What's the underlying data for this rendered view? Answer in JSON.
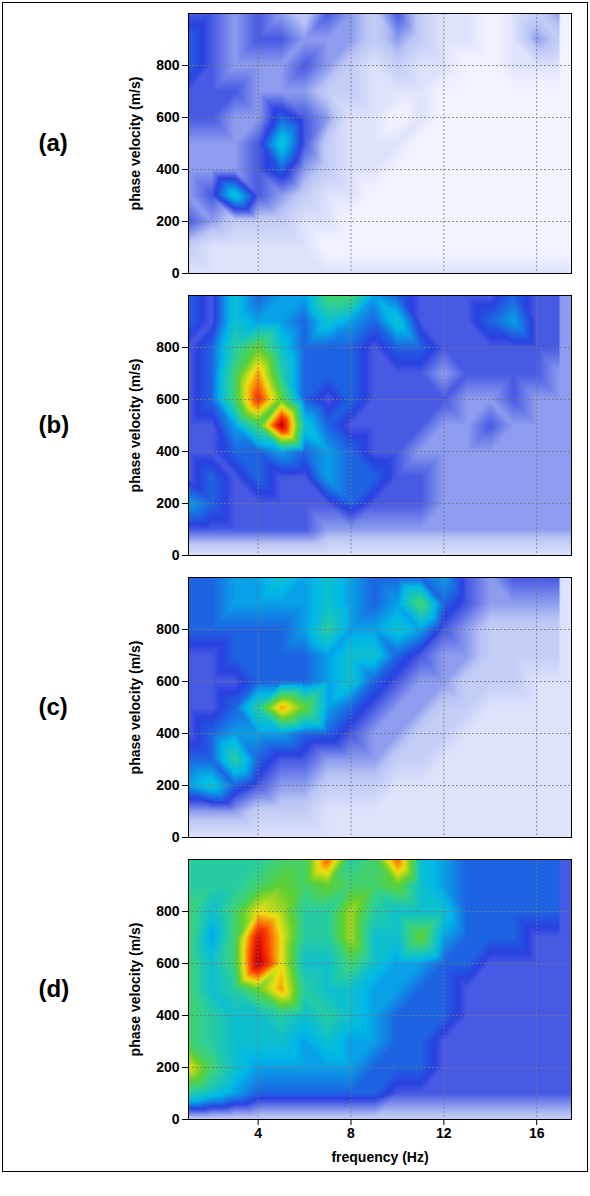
{
  "chart_data": [
    {
      "type": "heatmap",
      "title": "(a)",
      "y_label": "phase velocity (m/s)",
      "xlim": [
        1,
        17.5
      ],
      "ylim": [
        0,
        1000
      ],
      "xticks": [
        4,
        8,
        12,
        16
      ],
      "yticks": [
        0,
        200,
        400,
        600,
        800
      ],
      "grid": true,
      "tick_labels": "y",
      "zlim": [
        0,
        100
      ],
      "frequencies": [
        1,
        2,
        3,
        4,
        5,
        6,
        7,
        8,
        9,
        10,
        11,
        12,
        13,
        14,
        15,
        16,
        17
      ],
      "velocities": [
        1000,
        900,
        800,
        700,
        600,
        500,
        400,
        300,
        200,
        100,
        0
      ],
      "z": [
        [
          30,
          30,
          25,
          30,
          25,
          20,
          30,
          25,
          20,
          30,
          20,
          15,
          15,
          10,
          15,
          20,
          25
        ],
        [
          35,
          30,
          25,
          30,
          30,
          25,
          25,
          25,
          20,
          25,
          20,
          15,
          15,
          10,
          15,
          25,
          20
        ],
        [
          35,
          30,
          25,
          25,
          25,
          30,
          25,
          20,
          15,
          20,
          15,
          15,
          10,
          10,
          15,
          15,
          15
        ],
        [
          30,
          30,
          30,
          25,
          25,
          25,
          20,
          20,
          15,
          15,
          15,
          10,
          10,
          10,
          10,
          10,
          10
        ],
        [
          30,
          30,
          25,
          25,
          35,
          30,
          25,
          15,
          15,
          10,
          15,
          10,
          10,
          10,
          10,
          10,
          10
        ],
        [
          25,
          25,
          25,
          30,
          45,
          30,
          20,
          15,
          15,
          15,
          10,
          10,
          10,
          10,
          10,
          10,
          10
        ],
        [
          25,
          25,
          25,
          30,
          35,
          25,
          20,
          15,
          15,
          10,
          10,
          10,
          10,
          10,
          10,
          10,
          10
        ],
        [
          25,
          30,
          45,
          30,
          25,
          20,
          15,
          15,
          10,
          10,
          10,
          10,
          10,
          10,
          10,
          10,
          10
        ],
        [
          30,
          25,
          20,
          20,
          20,
          15,
          15,
          10,
          10,
          10,
          10,
          10,
          10,
          10,
          10,
          10,
          10
        ],
        [
          20,
          15,
          15,
          15,
          15,
          15,
          10,
          10,
          10,
          10,
          10,
          10,
          10,
          10,
          10,
          10,
          10
        ],
        [
          15,
          15,
          15,
          15,
          15,
          15,
          15,
          15,
          15,
          15,
          15,
          15,
          15,
          15,
          15,
          15,
          15
        ]
      ]
    },
    {
      "type": "heatmap",
      "title": "(b)",
      "y_label": "phase velocity (m/s)",
      "xlim": [
        1,
        17.5
      ],
      "ylim": [
        0,
        1000
      ],
      "xticks": [
        4,
        8,
        12,
        16
      ],
      "yticks": [
        0,
        200,
        400,
        600,
        800
      ],
      "grid": true,
      "tick_labels": "y",
      "zlim": [
        0,
        100
      ],
      "frequencies": [
        1,
        2,
        3,
        4,
        5,
        6,
        7,
        8,
        9,
        10,
        11,
        12,
        13,
        14,
        15,
        16,
        17
      ],
      "velocities": [
        1000,
        900,
        800,
        700,
        600,
        500,
        400,
        300,
        200,
        100,
        0
      ],
      "z": [
        [
          35,
          30,
          45,
          35,
          40,
          40,
          55,
          55,
          40,
          35,
          30,
          30,
          30,
          30,
          35,
          30,
          30
        ],
        [
          35,
          30,
          45,
          40,
          40,
          35,
          45,
          40,
          35,
          45,
          30,
          30,
          30,
          35,
          40,
          30,
          30
        ],
        [
          30,
          35,
          50,
          60,
          45,
          35,
          35,
          35,
          30,
          35,
          35,
          30,
          30,
          30,
          30,
          30,
          30
        ],
        [
          30,
          35,
          55,
          75,
          50,
          35,
          35,
          35,
          30,
          30,
          30,
          25,
          30,
          30,
          30,
          30,
          25
        ],
        [
          30,
          35,
          55,
          85,
          60,
          35,
          30,
          35,
          30,
          30,
          30,
          30,
          25,
          25,
          30,
          25,
          25
        ],
        [
          30,
          30,
          40,
          55,
          95,
          45,
          35,
          30,
          30,
          30,
          30,
          25,
          25,
          30,
          25,
          25,
          25
        ],
        [
          30,
          30,
          35,
          35,
          40,
          35,
          40,
          35,
          30,
          30,
          25,
          25,
          25,
          25,
          25,
          25,
          25
        ],
        [
          30,
          35,
          30,
          35,
          30,
          30,
          40,
          35,
          35,
          30,
          30,
          25,
          25,
          25,
          25,
          25,
          25
        ],
        [
          40,
          35,
          30,
          30,
          30,
          30,
          30,
          35,
          30,
          30,
          30,
          25,
          25,
          25,
          25,
          25,
          25
        ],
        [
          30,
          30,
          30,
          30,
          30,
          30,
          25,
          25,
          25,
          25,
          25,
          25,
          25,
          25,
          25,
          25,
          25
        ],
        [
          15,
          15,
          15,
          15,
          15,
          15,
          15,
          15,
          15,
          15,
          15,
          15,
          15,
          15,
          15,
          15,
          15
        ]
      ]
    },
    {
      "type": "heatmap",
      "title": "(c)",
      "y_label": "phase velocity (m/s)",
      "xlim": [
        1,
        17.5
      ],
      "ylim": [
        0,
        1000
      ],
      "xticks": [
        4,
        8,
        12,
        16
      ],
      "yticks": [
        0,
        200,
        400,
        600,
        800
      ],
      "grid": true,
      "tick_labels": "y",
      "zlim": [
        0,
        100
      ],
      "frequencies": [
        1,
        2,
        3,
        4,
        5,
        6,
        7,
        8,
        9,
        10,
        11,
        12,
        13,
        14,
        15,
        16,
        17
      ],
      "velocities": [
        1000,
        900,
        800,
        700,
        600,
        500,
        400,
        300,
        200,
        100,
        0
      ],
      "z": [
        [
          35,
          35,
          40,
          40,
          45,
          40,
          45,
          40,
          35,
          35,
          35,
          40,
          30,
          25,
          30,
          30,
          30
        ],
        [
          35,
          35,
          40,
          40,
          40,
          40,
          45,
          40,
          35,
          40,
          55,
          35,
          30,
          25,
          25,
          25,
          25
        ],
        [
          35,
          35,
          35,
          35,
          35,
          40,
          50,
          40,
          40,
          45,
          40,
          30,
          25,
          20,
          20,
          20,
          20
        ],
        [
          30,
          30,
          35,
          35,
          35,
          35,
          40,
          45,
          45,
          35,
          30,
          25,
          25,
          20,
          20,
          20,
          20
        ],
        [
          30,
          30,
          30,
          35,
          35,
          35,
          40,
          45,
          35,
          30,
          25,
          25,
          20,
          20,
          20,
          15,
          15
        ],
        [
          30,
          30,
          35,
          50,
          75,
          60,
          40,
          35,
          30,
          25,
          25,
          20,
          20,
          15,
          15,
          15,
          15
        ],
        [
          30,
          35,
          40,
          40,
          40,
          35,
          35,
          30,
          25,
          25,
          20,
          20,
          15,
          15,
          15,
          15,
          15
        ],
        [
          35,
          35,
          50,
          35,
          30,
          30,
          25,
          25,
          25,
          20,
          20,
          15,
          15,
          15,
          15,
          15,
          15
        ],
        [
          40,
          45,
          35,
          30,
          25,
          25,
          20,
          20,
          20,
          15,
          15,
          15,
          15,
          15,
          15,
          15,
          15
        ],
        [
          25,
          25,
          25,
          20,
          20,
          20,
          15,
          15,
          15,
          15,
          15,
          15,
          15,
          15,
          15,
          15,
          15
        ],
        [
          15,
          15,
          15,
          15,
          15,
          15,
          15,
          15,
          15,
          15,
          15,
          15,
          15,
          15,
          15,
          15,
          15
        ]
      ]
    },
    {
      "type": "heatmap",
      "title": "(d)",
      "y_label": "phase velocity (m/s)",
      "x_label": "frequency (Hz)",
      "xlim": [
        1,
        17.5
      ],
      "ylim": [
        0,
        1000
      ],
      "xticks": [
        4,
        8,
        12,
        16
      ],
      "yticks": [
        0,
        200,
        400,
        600,
        800
      ],
      "grid": true,
      "zlim": [
        0,
        100
      ],
      "frequencies": [
        1,
        2,
        3,
        4,
        5,
        6,
        7,
        8,
        9,
        10,
        11,
        12,
        13,
        14,
        15,
        16,
        17
      ],
      "velocities": [
        1000,
        900,
        800,
        700,
        600,
        500,
        400,
        300,
        200,
        100,
        0
      ],
      "z": [
        [
          50,
          50,
          50,
          50,
          55,
          55,
          80,
          50,
          55,
          80,
          45,
          40,
          35,
          35,
          35,
          35,
          35
        ],
        [
          50,
          50,
          50,
          55,
          60,
          55,
          60,
          55,
          55,
          60,
          45,
          40,
          35,
          35,
          35,
          35,
          35
        ],
        [
          55,
          45,
          55,
          70,
          65,
          50,
          50,
          65,
          50,
          45,
          45,
          45,
          35,
          35,
          35,
          35,
          35
        ],
        [
          55,
          40,
          55,
          90,
          70,
          50,
          50,
          65,
          45,
          45,
          60,
          40,
          35,
          35,
          35,
          30,
          30
        ],
        [
          55,
          45,
          55,
          95,
          70,
          45,
          45,
          55,
          45,
          40,
          40,
          35,
          35,
          30,
          30,
          30,
          30
        ],
        [
          55,
          45,
          50,
          60,
          75,
          50,
          45,
          45,
          40,
          40,
          35,
          35,
          30,
          30,
          30,
          30,
          30
        ],
        [
          55,
          50,
          45,
          45,
          50,
          45,
          50,
          45,
          40,
          35,
          35,
          35,
          30,
          30,
          30,
          30,
          30
        ],
        [
          55,
          50,
          45,
          45,
          45,
          40,
          45,
          40,
          40,
          35,
          35,
          30,
          30,
          30,
          30,
          30,
          30
        ],
        [
          70,
          55,
          45,
          40,
          40,
          40,
          40,
          40,
          35,
          35,
          35,
          30,
          30,
          30,
          30,
          30,
          30
        ],
        [
          50,
          45,
          40,
          35,
          35,
          35,
          35,
          35,
          35,
          30,
          30,
          30,
          30,
          30,
          30,
          30,
          30
        ],
        [
          20,
          20,
          20,
          20,
          20,
          20,
          20,
          20,
          20,
          20,
          20,
          20,
          20,
          20,
          20,
          20,
          20
        ]
      ]
    }
  ]
}
